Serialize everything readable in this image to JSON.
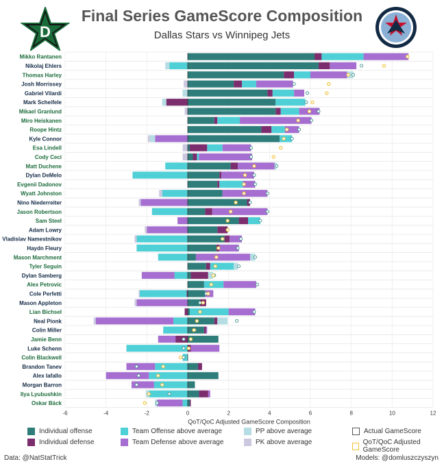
{
  "title": "Final Series GameScore Composition",
  "subtitle": "Dallas Stars vs Winnipeg Jets",
  "logos": {
    "left": "Dallas Stars logo",
    "right": "Winnipeg Jets logo"
  },
  "colors": {
    "individual_offense": "#2e7d7b",
    "individual_defense": "#7b2d6e",
    "team_offense": "#4fcfd6",
    "team_defense": "#a56ed0",
    "pp": "#b5dde3",
    "pk": "#ccc8e0",
    "actual_marker": "#3a8f8c",
    "adjusted_marker": "#f0c030",
    "dallas_label": "#1a6b3a",
    "winnipeg_label": "#132a45"
  },
  "legend": {
    "individual_offense": "Individual offense",
    "individual_defense": "Individual defense",
    "team_offense": "Team Offense above average",
    "team_defense": "Team Defense above average",
    "pp": "PP above average",
    "pk": "PK above average",
    "actual": "Actual GameScore",
    "adjusted": "QoT/QoC Adjusted GameScore"
  },
  "footer": {
    "left": "Data: @NatStatTrick",
    "right": "Models: @domluszczyszyn"
  },
  "chart_data": {
    "type": "bar",
    "orientation": "horizontal-stacked",
    "xlabel": "QoT/QoC Adjusted GameScore Composition",
    "xlim": [
      -6,
      12
    ],
    "xticks": [
      -6,
      -4,
      -2,
      0,
      2,
      4,
      6,
      8,
      10,
      12
    ],
    "series_order": [
      "ind_off",
      "ind_def",
      "team_off",
      "team_def",
      "pp",
      "pk"
    ],
    "players": [
      {
        "name": "Mikko Rantanen",
        "team": "DAL",
        "ind_off": 6.2,
        "ind_def": 0.35,
        "team_off": 2.05,
        "team_def": 2.2,
        "pp": 0,
        "pk": 0,
        "actual": 10.75,
        "adjusted": 10.75
      },
      {
        "name": "Nikolaj Ehlers",
        "team": "WPG",
        "ind_off": 6.4,
        "ind_def": 0.55,
        "team_off": -0.9,
        "team_def": 1.3,
        "pp": -0.2,
        "pk": 0,
        "actual": 8.5,
        "adjusted": 9.6
      },
      {
        "name": "Thomas Harley",
        "team": "DAL",
        "ind_off": 4.7,
        "ind_def": 0.5,
        "team_off": 0.8,
        "team_def": 1.8,
        "pp": 0.3,
        "pk": 0,
        "actual": 8.1,
        "adjusted": 7.85
      },
      {
        "name": "Josh Morrissey",
        "team": "WPG",
        "ind_off": 2.25,
        "ind_def": 0.4,
        "team_off": 0.7,
        "team_def": 1.8,
        "pp": 0,
        "pk": -0.2,
        "actual": 5.2,
        "adjusted": 6.9
      },
      {
        "name": "Gabriel Vilardi",
        "team": "WPG",
        "ind_off": 3.9,
        "ind_def": 0.25,
        "team_off": 1.05,
        "team_def": 0.5,
        "pp": -0.25,
        "pk": 0,
        "actual": 5.85,
        "adjusted": 6.8
      },
      {
        "name": "Mark Scheifele",
        "team": "WPG",
        "ind_off": 4.3,
        "ind_def": -1.05,
        "team_off": 1.45,
        "team_def": 0,
        "pp": -0.2,
        "pk": 0,
        "actual": 5.8,
        "adjusted": 6.1
      },
      {
        "name": "Mikael Granlund",
        "team": "DAL",
        "ind_off": 4.3,
        "ind_def": 0.25,
        "team_off": 0.9,
        "team_def": 1.0,
        "pp": 0,
        "pk": -0.15,
        "actual": 6.4,
        "adjusted": 5.95
      },
      {
        "name": "Miro Heiskanen",
        "team": "DAL",
        "ind_off": 1.3,
        "ind_def": 0.15,
        "team_off": 1.1,
        "team_def": 3.5,
        "pp": 0,
        "pk": 0,
        "actual": 6.05,
        "adjusted": 5.4
      },
      {
        "name": "Roope Hintz",
        "team": "DAL",
        "ind_off": 3.6,
        "ind_def": 0.5,
        "team_off": 0.65,
        "team_def": 0.7,
        "pp": 0,
        "pk": 0,
        "actual": 5.45,
        "adjusted": 4.85
      },
      {
        "name": "Kyle Connor",
        "team": "WPG",
        "ind_off": 4.5,
        "ind_def": 0,
        "team_off": 0.6,
        "team_def": -1.6,
        "pp": -0.25,
        "pk": -0.1,
        "actual": 5.1,
        "adjusted": 4.7
      },
      {
        "name": "Esa Lindell",
        "team": "DAL",
        "ind_off": 0.1,
        "ind_def": 0.85,
        "team_off": 0.75,
        "team_def": 1.4,
        "pp": 0,
        "pk": -0.25,
        "actual": 3.1,
        "adjusted": 4.55
      },
      {
        "name": "Cody Ceci",
        "team": "DAL",
        "ind_off": 0.25,
        "ind_def": 0.2,
        "team_off": 0.1,
        "team_def": 2.6,
        "pp": 0,
        "pk": -0.25,
        "actual": 3.1,
        "adjusted": 4.2
      },
      {
        "name": "Matt Duchene",
        "team": "DAL",
        "ind_off": 2.1,
        "ind_def": 0.35,
        "team_off": -1.1,
        "team_def": 1.8,
        "pp": 0.1,
        "pk": 0,
        "actual": 4.35,
        "adjusted": 3.25
      },
      {
        "name": "Dylan DeMelo",
        "team": "WPG",
        "ind_off": 1.55,
        "ind_def": 0.1,
        "team_off": -2.7,
        "team_def": 1.6,
        "pp": 0,
        "pk": 0,
        "actual": 3.25,
        "adjusted": 2.8
      },
      {
        "name": "Evgenii Dadonov",
        "team": "DAL",
        "ind_off": 1.45,
        "ind_def": 0.1,
        "team_off": 1.15,
        "team_def": 0.6,
        "pp": 0,
        "pk": 0,
        "actual": 3.3,
        "adjusted": 2.75
      },
      {
        "name": "Wyatt Johnston",
        "team": "DAL",
        "ind_off": 1.7,
        "ind_def": 0,
        "team_off": -1.25,
        "team_def": 2.2,
        "pp": 0,
        "pk": -0.15,
        "actual": 3.9,
        "adjusted": 2.75
      },
      {
        "name": "Nino Niederreiter",
        "team": "WPG",
        "ind_off": 2.9,
        "ind_def": 0.15,
        "team_off": 0,
        "team_def": -2.3,
        "pp": 0,
        "pk": -0.1,
        "actual": 3.05,
        "adjusted": 2.35
      },
      {
        "name": "Jason Robertson",
        "team": "DAL",
        "ind_off": 0.85,
        "ind_def": 0.35,
        "team_off": -1.75,
        "team_def": 2.7,
        "pp": 0,
        "pk": 0,
        "actual": 3.9,
        "adjusted": 2.1
      },
      {
        "name": "Sam Steel",
        "team": "DAL",
        "ind_off": 2.5,
        "ind_def": 0.45,
        "team_off": 0.6,
        "team_def": -0.5,
        "pp": 0,
        "pk": 0,
        "actual": 3.55,
        "adjusted": 1.95
      },
      {
        "name": "Adam Lowry",
        "team": "WPG",
        "ind_off": 1.45,
        "ind_def": 0.5,
        "team_off": 0,
        "team_def": -2.0,
        "pp": 0,
        "pk": -0.1,
        "actual": 1.95,
        "adjusted": 1.95
      },
      {
        "name": "Vladislav Namestnikov",
        "team": "WPG",
        "ind_off": 1.8,
        "ind_def": 0.25,
        "team_off": -2.5,
        "team_def": 0.6,
        "pp": 0,
        "pk": -0.1,
        "actual": 2.6,
        "adjusted": 1.7
      },
      {
        "name": "Haydn Fleury",
        "team": "WPG",
        "ind_off": 1.4,
        "ind_def": 0.15,
        "team_off": -2.5,
        "team_def": 0.95,
        "pp": 0,
        "pk": 0,
        "actual": 2.45,
        "adjusted": 1.5
      },
      {
        "name": "Mason Marchment",
        "team": "DAL",
        "ind_off": 0.4,
        "ind_def": 0,
        "team_off": -1.45,
        "team_def": 2.65,
        "pp": 0.25,
        "pk": 0,
        "actual": 3.3,
        "adjusted": 1.4
      },
      {
        "name": "Tyler Seguin",
        "team": "DAL",
        "ind_off": 0.9,
        "ind_def": 0.2,
        "team_off": 1.15,
        "team_def": 0,
        "pp": 0.2,
        "pk": 0,
        "actual": 2.5,
        "adjusted": 1.35
      },
      {
        "name": "Dylan Samberg",
        "team": "WPG",
        "ind_off": 0.15,
        "ind_def": 0.85,
        "team_off": -0.65,
        "team_def": -1.6,
        "pp": 0.25,
        "pk": 0,
        "actual": 1.3,
        "adjusted": 1.25
      },
      {
        "name": "Alex Petrovic",
        "team": "DAL",
        "ind_off": 0.8,
        "ind_def": 0,
        "team_off": 0.95,
        "team_def": 1.6,
        "pp": 0,
        "pk": 0,
        "actual": 3.4,
        "adjusted": 1.15
      },
      {
        "name": "Cole Perfetti",
        "team": "WPG",
        "ind_off": 0.85,
        "ind_def": -0.05,
        "team_off": -2.3,
        "team_def": 0.4,
        "pp": 0,
        "pk": -0.05,
        "actual": 0.9,
        "adjusted": 1.0
      },
      {
        "name": "Mason Appleton",
        "team": "WPG",
        "ind_off": 0.6,
        "ind_def": 0.3,
        "team_off": 0,
        "team_def": -2.5,
        "pp": 0,
        "pk": -0.1,
        "actual": 0.6,
        "adjusted": 0.75
      },
      {
        "name": "Lian Bichsel",
        "team": "DAL",
        "ind_off": 0.1,
        "ind_def": -0.15,
        "team_off": 1.9,
        "team_def": 1.3,
        "pp": 0,
        "pk": 0,
        "actual": 3.25,
        "adjusted": 0.6
      },
      {
        "name": "Neal Pionk",
        "team": "WPG",
        "ind_off": 1.3,
        "ind_def": 0.15,
        "team_off": -0.7,
        "team_def": -3.8,
        "pp": 0.5,
        "pk": -0.1,
        "actual": 2.4,
        "adjusted": 0.45
      },
      {
        "name": "Colin Miller",
        "team": "WPG",
        "ind_off": 0.8,
        "ind_def": 0.1,
        "team_off": -1.2,
        "team_def": 0.05,
        "pp": 0,
        "pk": 0,
        "actual": 0.35,
        "adjusted": 0.3
      },
      {
        "name": "Jamie Benn",
        "team": "DAL",
        "ind_off": 1.5,
        "ind_def": -0.6,
        "team_off": 0,
        "team_def": -0.85,
        "pp": 0,
        "pk": 0,
        "actual": -0.2,
        "adjusted": 0.15
      },
      {
        "name": "Luke Schenn",
        "team": "WPG",
        "ind_off": 0,
        "ind_def": 0.15,
        "team_off": -3.0,
        "team_def": 1.4,
        "pp": 0,
        "pk": 0,
        "actual": -0.2,
        "adjusted": 0.05
      },
      {
        "name": "Colin Blackwell",
        "team": "DAL",
        "ind_off": 0,
        "ind_def": 0,
        "team_off": -0.25,
        "team_def": 0,
        "pp": 0,
        "pk": 0,
        "actual": -0.2,
        "adjusted": -0.35
      },
      {
        "name": "Brandon Tanev",
        "team": "WPG",
        "ind_off": 0.5,
        "ind_def": 0.2,
        "team_off": -1.6,
        "team_def": -1.4,
        "pp": 0,
        "pk": 0,
        "actual": -2.5,
        "adjusted": -1.2
      },
      {
        "name": "Alex Iafallo",
        "team": "WPG",
        "ind_off": 1.5,
        "ind_def": 0,
        "team_off": -1.9,
        "team_def": -2.1,
        "pp": 0,
        "pk": 0,
        "actual": -2.4,
        "adjusted": -1.45
      },
      {
        "name": "Morgan Barron",
        "team": "WPG",
        "ind_off": 0.35,
        "ind_def": 0,
        "team_off": -1.65,
        "team_def": -1.1,
        "pp": 0,
        "pk": 0,
        "actual": -2.5,
        "adjusted": -1.25
      },
      {
        "name": "Ilya Lyubushkin",
        "team": "DAL",
        "ind_off": 0.55,
        "ind_def": 0.45,
        "team_off": -1.9,
        "team_def": 0.1,
        "pp": -0.15,
        "pk": 0,
        "actual": -0.9,
        "adjusted": -1.9
      },
      {
        "name": "Oskar Bäck",
        "team": "DAL",
        "ind_off": 0.1,
        "ind_def": 0.05,
        "team_off": -0.25,
        "team_def": -1.25,
        "pp": -0.1,
        "pk": 0,
        "actual": -1.5,
        "adjusted": -2.1
      }
    ]
  }
}
